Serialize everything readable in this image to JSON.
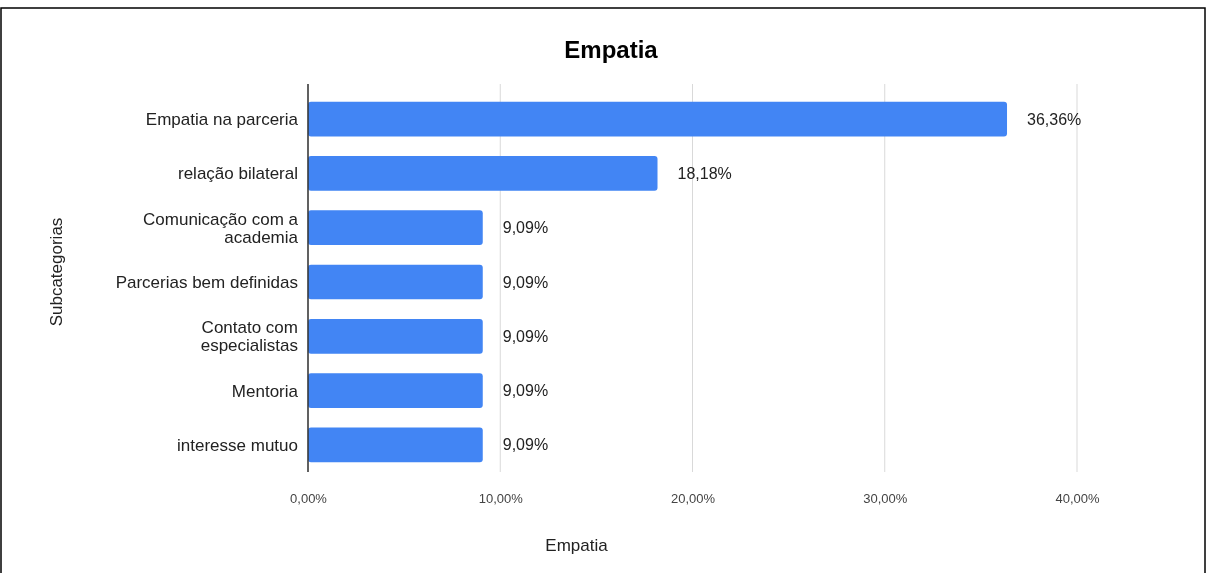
{
  "chart_data": {
    "type": "bar",
    "orientation": "horizontal",
    "title": "Empatia",
    "xlabel": "Empatia",
    "ylabel": "Subcategorias",
    "categories": [
      "Empatia na parceria",
      "relação bilateral",
      "Comunicação com a academia",
      "Parcerias bem definidas",
      "Contato com especialistas",
      "Mentoria",
      "interesse mutuo"
    ],
    "values": [
      36.36,
      18.18,
      9.09,
      9.09,
      9.09,
      9.09,
      9.09
    ],
    "value_labels": [
      "36,36%",
      "18,18%",
      "9,09%",
      "9,09%",
      "9,09%",
      "9,09%",
      "9,09%"
    ],
    "color": "#4285f4",
    "xlim": [
      0,
      40
    ],
    "xticks": [
      {
        "value": 0,
        "label": "0,00%"
      },
      {
        "value": 10,
        "label": "10,00%"
      },
      {
        "value": 20,
        "label": "20,00%"
      },
      {
        "value": 30,
        "label": "30,00%"
      },
      {
        "value": 40,
        "label": "40,00%"
      }
    ],
    "grid": "x"
  }
}
